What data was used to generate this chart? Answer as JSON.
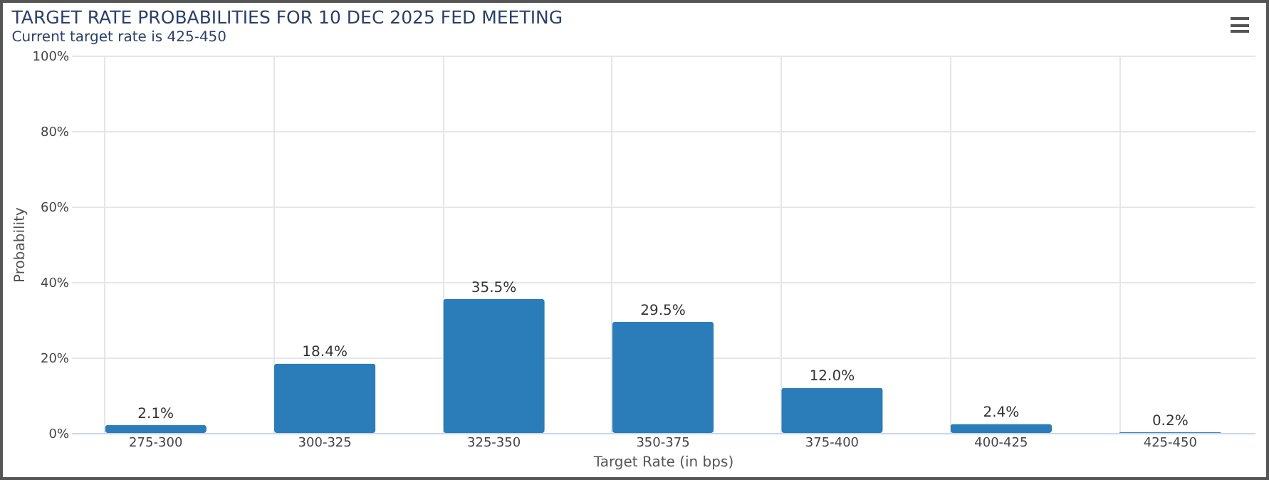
{
  "chart_data": {
    "type": "bar",
    "title": "TARGET RATE PROBABILITIES FOR 10 DEC 2025 FED MEETING",
    "subtitle": "Current target rate is 425-450",
    "xlabel": "Target Rate (in bps)",
    "ylabel": "Probability",
    "categories": [
      "275-300",
      "300-325",
      "325-350",
      "350-375",
      "375-400",
      "400-425",
      "425-450"
    ],
    "values": [
      2.1,
      18.4,
      35.5,
      29.5,
      12.0,
      2.4,
      0.2
    ],
    "value_labels": [
      "2.1%",
      "18.4%",
      "35.5%",
      "29.5%",
      "12.0%",
      "2.4%",
      "0.2%"
    ],
    "color": "#2a7db8",
    "ylim": [
      0,
      100
    ],
    "yticks": [
      {
        "value": 0,
        "label": "0%"
      },
      {
        "value": 20,
        "label": "20%"
      },
      {
        "value": 40,
        "label": "40%"
      },
      {
        "value": 60,
        "label": "60%"
      },
      {
        "value": 80,
        "label": "80%"
      },
      {
        "value": 100,
        "label": "100%"
      }
    ],
    "grid": true
  }
}
